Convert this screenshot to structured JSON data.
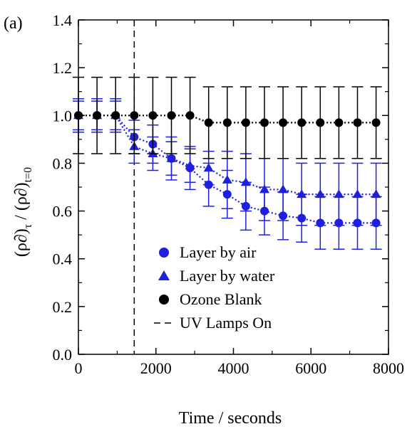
{
  "chart_data": {
    "type": "scatter",
    "panel_label": "(a)",
    "xlabel": "Time / seconds",
    "ylabel": {
      "base": "(ρ∂)",
      "sub1": "τ",
      "mid": " / (ρ∂)",
      "sub2": "t=0"
    },
    "xlim": [
      0,
      8000
    ],
    "ylim": [
      0.0,
      1.4
    ],
    "xticks": [
      0,
      2000,
      4000,
      6000,
      8000
    ],
    "xtick_labels": [
      "0",
      "2000",
      "4000",
      "6000",
      "8000"
    ],
    "yticks": [
      0.0,
      0.2,
      0.4,
      0.6,
      0.8,
      1.0,
      1.2,
      1.4
    ],
    "ytick_labels": [
      "0.0",
      "0.2",
      "0.4",
      "0.6",
      "0.8",
      "1.0",
      "1.2",
      "1.4"
    ],
    "grid": false,
    "legend_position": "bottom-center",
    "uv_lamps_on_x": 1440,
    "series": [
      {
        "name": "Layer  by air",
        "marker": "circle",
        "color": "#1f1fe0",
        "line": "dotted",
        "x": [
          0,
          480,
          960,
          1440,
          1920,
          2400,
          2880,
          3360,
          3840,
          4320,
          4800,
          5280,
          5760,
          6240,
          6720,
          7200,
          7680
        ],
        "y": [
          1.0,
          1.0,
          1.0,
          0.91,
          0.88,
          0.82,
          0.78,
          0.71,
          0.67,
          0.62,
          0.6,
          0.58,
          0.57,
          0.55,
          0.55,
          0.55,
          0.55
        ],
        "yerr": [
          0.06,
          0.06,
          0.06,
          0.07,
          0.08,
          0.09,
          0.09,
          0.09,
          0.1,
          0.1,
          0.1,
          0.1,
          0.1,
          0.11,
          0.11,
          0.11,
          0.11
        ]
      },
      {
        "name": "Layer by water",
        "marker": "triangle",
        "color": "#1f1fe0",
        "line": "dotted",
        "x": [
          0,
          480,
          960,
          1440,
          1920,
          2400,
          2880,
          3360,
          3840,
          4320,
          4800,
          5280,
          5760,
          6240,
          6720,
          7200,
          7680
        ],
        "y": [
          1.0,
          1.0,
          1.0,
          0.87,
          0.84,
          0.82,
          0.79,
          0.78,
          0.73,
          0.72,
          0.69,
          0.69,
          0.67,
          0.67,
          0.67,
          0.67,
          0.67
        ],
        "yerr": [
          0.07,
          0.07,
          0.07,
          0.07,
          0.07,
          0.07,
          0.07,
          0.07,
          0.12,
          0.12,
          0.13,
          0.13,
          0.13,
          0.13,
          0.13,
          0.13,
          0.13
        ]
      },
      {
        "name": "Ozone Blank",
        "marker": "circle",
        "color": "#000000",
        "line": "dotted",
        "x": [
          0,
          480,
          960,
          1440,
          1920,
          2400,
          2880,
          3360,
          3840,
          4320,
          4800,
          5280,
          5760,
          6240,
          6720,
          7200,
          7680
        ],
        "y": [
          1.0,
          1.0,
          1.0,
          1.0,
          1.0,
          1.0,
          1.0,
          0.97,
          0.97,
          0.97,
          0.97,
          0.97,
          0.97,
          0.97,
          0.97,
          0.97,
          0.97
        ],
        "yerr": [
          0.16,
          0.16,
          0.16,
          0.16,
          0.16,
          0.16,
          0.16,
          0.15,
          0.15,
          0.15,
          0.15,
          0.15,
          0.15,
          0.15,
          0.15,
          0.15,
          0.15
        ]
      }
    ],
    "legend": [
      {
        "label": "Layer  by air",
        "marker": "circle",
        "color": "#1f1fe0"
      },
      {
        "label": "Layer by water",
        "marker": "triangle",
        "color": "#1f1fe0"
      },
      {
        "label": "Ozone Blank",
        "marker": "circle",
        "color": "#000000"
      },
      {
        "label": "UV Lamps On",
        "marker": "dashed-line",
        "color": "#000000"
      }
    ]
  }
}
